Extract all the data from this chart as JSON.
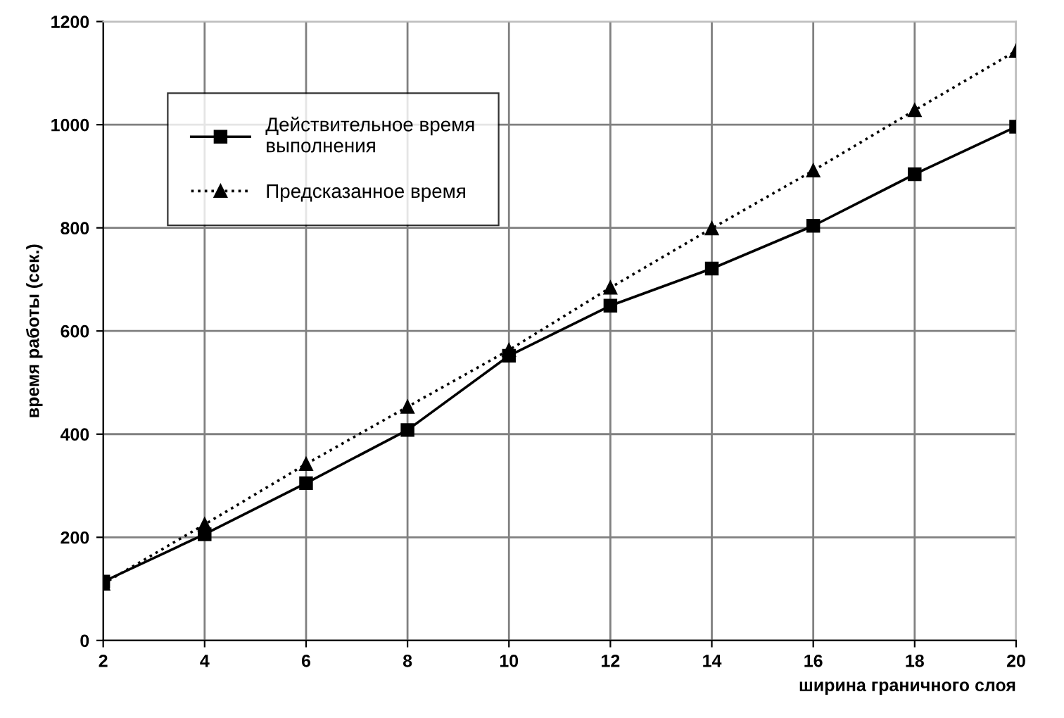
{
  "chart_data": {
    "type": "line",
    "xlabel": "ширина граничного слоя",
    "ylabel": "время работы (сек.)",
    "x": [
      2,
      4,
      6,
      8,
      10,
      12,
      14,
      16,
      18,
      20
    ],
    "series": [
      {
        "name": "Действительное время\nвыполнения",
        "color": "#000000",
        "values": [
          114,
          206,
          305,
          408,
          552,
          649,
          721,
          804,
          904,
          996
        ],
        "marker": "square",
        "line_style": "solid"
      },
      {
        "name": "Предсказанное время",
        "color": "#000000",
        "values": [
          110,
          225,
          342,
          453,
          563,
          684,
          799,
          911,
          1028,
          1143
        ],
        "marker": "triangle",
        "line_style": "dotted"
      }
    ],
    "xlim": [
      2,
      20
    ],
    "xticks": [
      2,
      4,
      6,
      8,
      10,
      12,
      14,
      16,
      18,
      20
    ],
    "ylim": [
      0,
      1200
    ],
    "yticks": [
      0,
      200,
      400,
      600,
      800,
      1000,
      1200
    ],
    "grid": true,
    "legend": "top left"
  }
}
